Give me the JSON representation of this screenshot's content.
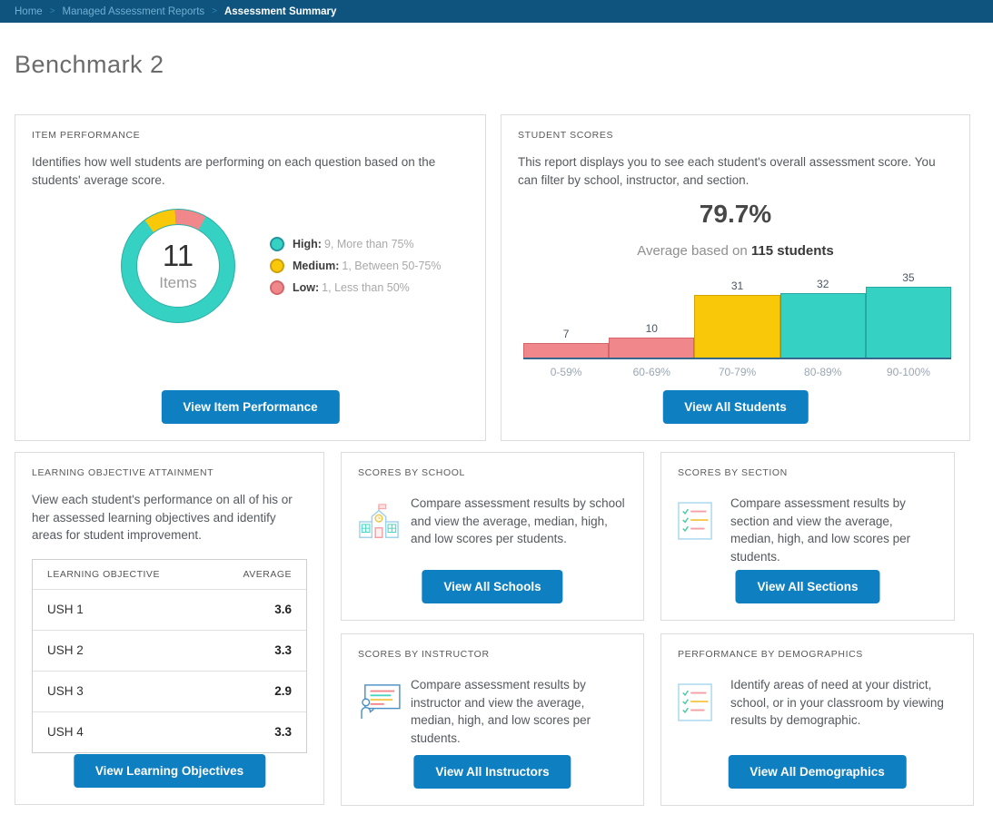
{
  "breadcrumb": {
    "separator": ">",
    "items": [
      {
        "label": "Home"
      },
      {
        "label": "Managed Assessment Reports"
      },
      {
        "label": "Assessment Summary"
      }
    ]
  },
  "page": {
    "title": "Benchmark 2"
  },
  "colors": {
    "breadcrumb_bar": "#0e547e",
    "primary_button": "#0e7fc1",
    "teal": "#35d1c2",
    "yellow": "#f9c808",
    "pink": "#f0878a"
  },
  "cards": {
    "item_performance": {
      "title": "Item Performance",
      "description": "Identifies how well students are performing on each question based on the students' average score.",
      "donut": {
        "total": "11",
        "total_label": "Items"
      },
      "legend": [
        {
          "name": "High:",
          "detail": "9, More than 75%",
          "color": "#35d1c2"
        },
        {
          "name": "Medium:",
          "detail": "1, Between 50-75%",
          "color": "#f9c808"
        },
        {
          "name": "Low:",
          "detail": "1, Less than 50%",
          "color": "#f0878a"
        }
      ],
      "button": "View Item Performance"
    },
    "student_scores": {
      "title": "Student Scores",
      "description": "This report displays you to see each student's overall assessment score. You can filter by school, instructor, and section.",
      "average_score": "79.7%",
      "average_prefix": "Average based on",
      "average_bold": "115 students",
      "button": "View All Students"
    },
    "learning_objectives": {
      "title": "Learning Objective Attainment",
      "description": "View each student's performance on all of his or her assessed learning objectives and identify areas for student improvement.",
      "table": {
        "headers": [
          "Learning Objective",
          "Average"
        ],
        "rows": [
          {
            "name": "USH 1",
            "average": "3.6"
          },
          {
            "name": "USH 2",
            "average": "3.3"
          },
          {
            "name": "USH 3",
            "average": "2.9"
          },
          {
            "name": "USH 4",
            "average": "3.3"
          }
        ]
      },
      "button": "View Learning Objectives"
    },
    "scores_by_school": {
      "title": "Scores by School",
      "description": "Compare assessment results by school and view the average, median, high, and low scores per students.",
      "button": "View All Schools"
    },
    "scores_by_section": {
      "title": "Scores by Section",
      "description": "Compare assessment results by section and view the average, median, high, and low scores per students.",
      "button": "View All Sections"
    },
    "scores_by_instructor": {
      "title": "Scores by Instructor",
      "description": "Compare assessment results by instructor and view the average, median, high, and low scores per students.",
      "button": "View All Instructors"
    },
    "performance_by_demographics": {
      "title": "Performance by Demographics",
      "description": "Identify areas of need at your district, school, or in your classroom by viewing results by demographic.",
      "button": "View All Demographics"
    }
  },
  "chart_data": [
    {
      "type": "pie",
      "variant": "donut",
      "title": "Item Performance",
      "center_value": 11,
      "center_label": "Items",
      "slices": [
        {
          "label": "High",
          "value": 9,
          "color": "#35d1c2",
          "description": "More than 75%"
        },
        {
          "label": "Medium",
          "value": 1,
          "color": "#f9c808",
          "description": "Between 50-75%"
        },
        {
          "label": "Low",
          "value": 1,
          "color": "#f0878a",
          "description": "Less than 50%"
        }
      ],
      "render": {
        "start_angle_deg": 324,
        "order": [
          "Medium",
          "Low",
          "High"
        ]
      }
    },
    {
      "type": "bar",
      "title": "Student score distribution",
      "categories": [
        "0-59%",
        "60-69%",
        "70-79%",
        "80-89%",
        "90-100%"
      ],
      "values": [
        7,
        10,
        31,
        32,
        35
      ],
      "colors": [
        "#f0878a",
        "#f0878a",
        "#f9c808",
        "#35d1c2",
        "#35d1c2"
      ],
      "border_colors": [
        "#d4666b",
        "#d4666b",
        "#d3a206",
        "#26a9a0",
        "#26a9a0"
      ],
      "ylim": [
        0,
        35
      ],
      "value_labels": true,
      "legend_position": "none",
      "grid": false
    }
  ]
}
